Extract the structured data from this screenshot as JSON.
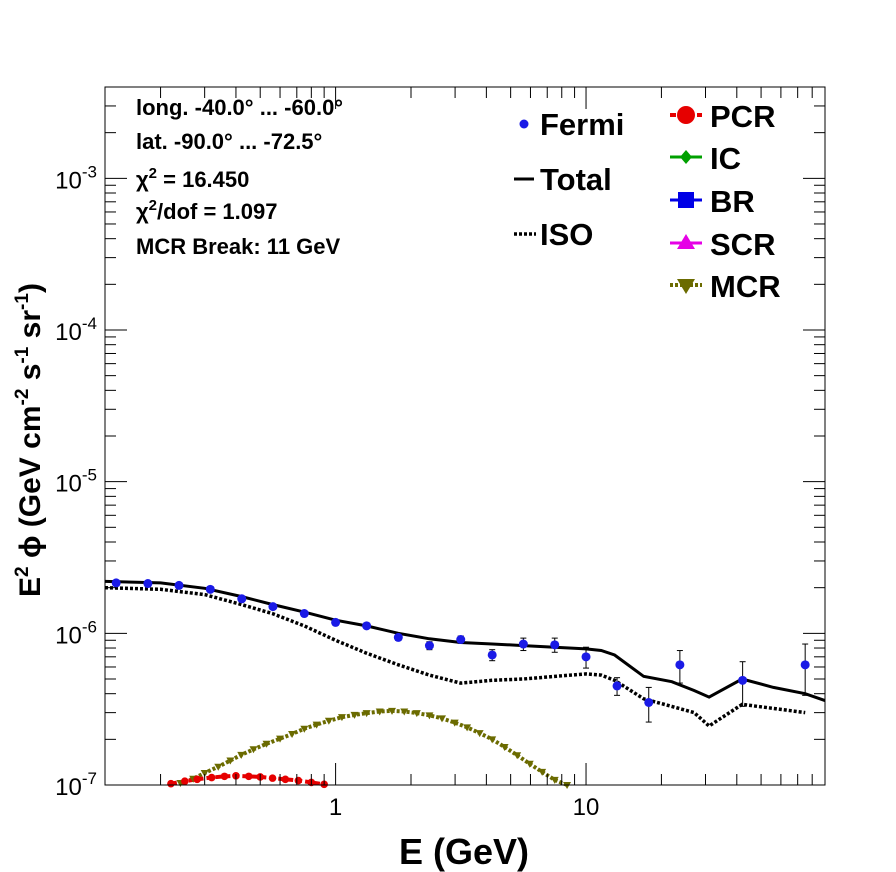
{
  "chart_data": {
    "type": "scatter",
    "xlabel": "E (GeV)",
    "ylabel": {
      "base": "E",
      "sup1": "2",
      "mid": " ϕ (GeV cm",
      "sup2": "-2",
      "mid2": " s",
      "sup3": "-1",
      "mid3": " sr",
      "sup4": "-1",
      "end": ")"
    },
    "xscale": "log",
    "yscale": "log",
    "xlim": [
      0.12,
      90
    ],
    "ylim": [
      1e-07,
      0.004
    ],
    "x_tick_labels": [
      {
        "value": 1,
        "label": "1"
      },
      {
        "value": 10,
        "label": "10"
      }
    ],
    "y_tick_labels": [
      {
        "value": 1e-07,
        "base": "10",
        "exp": "-7"
      },
      {
        "value": 1e-06,
        "base": "10",
        "exp": "-6"
      },
      {
        "value": 1e-05,
        "base": "10",
        "exp": "-5"
      },
      {
        "value": 0.0001,
        "base": "10",
        "exp": "-4"
      },
      {
        "value": 0.001,
        "base": "10",
        "exp": "-3"
      }
    ],
    "annotations": [
      {
        "text": "long. -40.0° ... -60.0°"
      },
      {
        "text": "lat. -90.0° ... -72.5°"
      },
      {
        "prefix": "χ",
        "sup": "2",
        "text": " = 16.450"
      },
      {
        "prefix": "χ",
        "sup": "2",
        "text": "/dof = 1.097"
      },
      {
        "text": "MCR Break: 11 GeV"
      }
    ],
    "legend_left": [
      {
        "label": "Fermi",
        "style": "marker",
        "color": "#1a1ae6"
      },
      {
        "label": "Total",
        "style": "solid",
        "color": "#000000"
      },
      {
        "label": "ISO",
        "style": "dotted",
        "color": "#000000"
      }
    ],
    "legend_right": [
      {
        "label": "PCR",
        "marker": "circle",
        "color": "#e60000"
      },
      {
        "label": "IC",
        "marker": "diamond",
        "color": "#00a000"
      },
      {
        "label": "BR",
        "marker": "square",
        "color": "#0000e6"
      },
      {
        "label": "SCR",
        "marker": "triangle-up",
        "color": "#e600e6"
      },
      {
        "label": "MCR",
        "marker": "triangle-down",
        "color": "#6b6b00"
      }
    ],
    "series": [
      {
        "name": "Fermi",
        "style": "points",
        "color": "#1a1ae6",
        "points": [
          {
            "x": 0.133,
            "y": 2.15e-06,
            "err": 4e-08
          },
          {
            "x": 0.178,
            "y": 2.13e-06,
            "err": 4e-08
          },
          {
            "x": 0.237,
            "y": 2.07e-06,
            "err": 4e-08
          },
          {
            "x": 0.316,
            "y": 1.95e-06,
            "err": 4e-08
          },
          {
            "x": 0.422,
            "y": 1.69e-06,
            "err": 4e-08
          },
          {
            "x": 0.562,
            "y": 1.5e-06,
            "err": 4e-08
          },
          {
            "x": 0.75,
            "y": 1.35e-06,
            "err": 4e-08
          },
          {
            "x": 1.0,
            "y": 1.18e-06,
            "err": 4e-08
          },
          {
            "x": 1.33,
            "y": 1.12e-06,
            "err": 4e-08
          },
          {
            "x": 1.78,
            "y": 9.4e-07,
            "err": 4e-08
          },
          {
            "x": 2.37,
            "y": 8.3e-07,
            "err": 5e-08
          },
          {
            "x": 3.16,
            "y": 9.1e-07,
            "err": 5e-08
          },
          {
            "x": 4.22,
            "y": 7.2e-07,
            "err": 6e-08
          },
          {
            "x": 5.62,
            "y": 8.5e-07,
            "err": 8e-08
          },
          {
            "x": 7.5,
            "y": 8.4e-07,
            "err": 9e-08
          },
          {
            "x": 10.0,
            "y": 7e-07,
            "err": 1.1e-07
          },
          {
            "x": 13.3,
            "y": 4.5e-07,
            "err": 6e-08
          },
          {
            "x": 17.8,
            "y": 3.5e-07,
            "err": 9e-08
          },
          {
            "x": 23.7,
            "y": 6.2e-07,
            "err": 1.5e-07
          },
          {
            "x": 42.2,
            "y": 4.9e-07,
            "err": 1.6e-07
          },
          {
            "x": 75.0,
            "y": 6.2e-07,
            "err": 2.3e-07
          }
        ]
      },
      {
        "name": "Total",
        "style": "solid",
        "color": "#000000",
        "points": [
          {
            "x": 0.12,
            "y": 2.2e-06
          },
          {
            "x": 0.2,
            "y": 2.15e-06
          },
          {
            "x": 0.3,
            "y": 1.98e-06
          },
          {
            "x": 0.42,
            "y": 1.75e-06
          },
          {
            "x": 0.56,
            "y": 1.55e-06
          },
          {
            "x": 0.75,
            "y": 1.38e-06
          },
          {
            "x": 1.0,
            "y": 1.22e-06
          },
          {
            "x": 1.33,
            "y": 1.12e-06
          },
          {
            "x": 1.78,
            "y": 1e-06
          },
          {
            "x": 2.37,
            "y": 9.2e-07
          },
          {
            "x": 3.16,
            "y": 8.7e-07
          },
          {
            "x": 4.22,
            "y": 8.5e-07
          },
          {
            "x": 5.62,
            "y": 8.3e-07
          },
          {
            "x": 7.5,
            "y": 8.1e-07
          },
          {
            "x": 10.0,
            "y": 7.9e-07
          },
          {
            "x": 11.5,
            "y": 7.7e-07
          },
          {
            "x": 13.0,
            "y": 7.2e-07
          },
          {
            "x": 17.0,
            "y": 5.2e-07
          },
          {
            "x": 22.0,
            "y": 4.8e-07
          },
          {
            "x": 27.0,
            "y": 4.2e-07
          },
          {
            "x": 31.0,
            "y": 3.8e-07
          },
          {
            "x": 42.0,
            "y": 5e-07
          },
          {
            "x": 56.0,
            "y": 4.4e-07
          },
          {
            "x": 75.0,
            "y": 4e-07
          },
          {
            "x": 90.0,
            "y": 3.6e-07
          }
        ]
      },
      {
        "name": "ISO",
        "style": "dotted",
        "color": "#000000",
        "points": [
          {
            "x": 0.12,
            "y": 2e-06
          },
          {
            "x": 0.2,
            "y": 1.95e-06
          },
          {
            "x": 0.3,
            "y": 1.8e-06
          },
          {
            "x": 0.42,
            "y": 1.55e-06
          },
          {
            "x": 0.56,
            "y": 1.35e-06
          },
          {
            "x": 0.75,
            "y": 1.12e-06
          },
          {
            "x": 1.0,
            "y": 9e-07
          },
          {
            "x": 1.33,
            "y": 7.4e-07
          },
          {
            "x": 1.78,
            "y": 6.2e-07
          },
          {
            "x": 2.37,
            "y": 5.3e-07
          },
          {
            "x": 3.16,
            "y": 4.7e-07
          },
          {
            "x": 4.22,
            "y": 4.9e-07
          },
          {
            "x": 5.62,
            "y": 5e-07
          },
          {
            "x": 7.5,
            "y": 5.2e-07
          },
          {
            "x": 10.0,
            "y": 5.4e-07
          },
          {
            "x": 11.5,
            "y": 5.3e-07
          },
          {
            "x": 13.0,
            "y": 4.9e-07
          },
          {
            "x": 17.0,
            "y": 3.7e-07
          },
          {
            "x": 22.0,
            "y": 3.3e-07
          },
          {
            "x": 27.0,
            "y": 3e-07
          },
          {
            "x": 31.0,
            "y": 2.45e-07
          },
          {
            "x": 42.0,
            "y": 3.4e-07
          },
          {
            "x": 56.0,
            "y": 3.2e-07
          },
          {
            "x": 75.0,
            "y": 3e-07
          }
        ]
      },
      {
        "name": "MCR",
        "style": "dotted-markers",
        "color": "#6b6b00",
        "points": [
          {
            "x": 0.24,
            "y": 1.03e-07
          },
          {
            "x": 0.27,
            "y": 1.1e-07
          },
          {
            "x": 0.3,
            "y": 1.2e-07
          },
          {
            "x": 0.34,
            "y": 1.32e-07
          },
          {
            "x": 0.38,
            "y": 1.45e-07
          },
          {
            "x": 0.42,
            "y": 1.58e-07
          },
          {
            "x": 0.47,
            "y": 1.72e-07
          },
          {
            "x": 0.53,
            "y": 1.87e-07
          },
          {
            "x": 0.6,
            "y": 2.02e-07
          },
          {
            "x": 0.67,
            "y": 2.17e-07
          },
          {
            "x": 0.75,
            "y": 2.35e-07
          },
          {
            "x": 0.84,
            "y": 2.5e-07
          },
          {
            "x": 0.94,
            "y": 2.65e-07
          },
          {
            "x": 1.06,
            "y": 2.8e-07
          },
          {
            "x": 1.19,
            "y": 2.9e-07
          },
          {
            "x": 1.33,
            "y": 2.98e-07
          },
          {
            "x": 1.5,
            "y": 3.05e-07
          },
          {
            "x": 1.68,
            "y": 3.08e-07
          },
          {
            "x": 1.88,
            "y": 3.05e-07
          },
          {
            "x": 2.11,
            "y": 2.98e-07
          },
          {
            "x": 2.37,
            "y": 2.88e-07
          },
          {
            "x": 2.66,
            "y": 2.75e-07
          },
          {
            "x": 2.99,
            "y": 2.58e-07
          },
          {
            "x": 3.35,
            "y": 2.4e-07
          },
          {
            "x": 3.76,
            "y": 2.2e-07
          },
          {
            "x": 4.22,
            "y": 2e-07
          },
          {
            "x": 4.73,
            "y": 1.78e-07
          },
          {
            "x": 5.31,
            "y": 1.57e-07
          },
          {
            "x": 5.96,
            "y": 1.38e-07
          },
          {
            "x": 6.68,
            "y": 1.22e-07
          },
          {
            "x": 7.5,
            "y": 1.08e-07
          },
          {
            "x": 8.4,
            "y": 1e-07
          }
        ]
      },
      {
        "name": "PCR",
        "style": "dashed-markers",
        "color": "#e60000",
        "points": [
          {
            "x": 0.22,
            "y": 1.02e-07
          },
          {
            "x": 0.25,
            "y": 1.06e-07
          },
          {
            "x": 0.28,
            "y": 1.09e-07
          },
          {
            "x": 0.32,
            "y": 1.12e-07
          },
          {
            "x": 0.36,
            "y": 1.14e-07
          },
          {
            "x": 0.4,
            "y": 1.15e-07
          },
          {
            "x": 0.45,
            "y": 1.14e-07
          },
          {
            "x": 0.5,
            "y": 1.13e-07
          },
          {
            "x": 0.56,
            "y": 1.11e-07
          },
          {
            "x": 0.63,
            "y": 1.09e-07
          },
          {
            "x": 0.71,
            "y": 1.07e-07
          },
          {
            "x": 0.8,
            "y": 1.04e-07
          },
          {
            "x": 0.9,
            "y": 1.01e-07
          }
        ]
      }
    ]
  }
}
